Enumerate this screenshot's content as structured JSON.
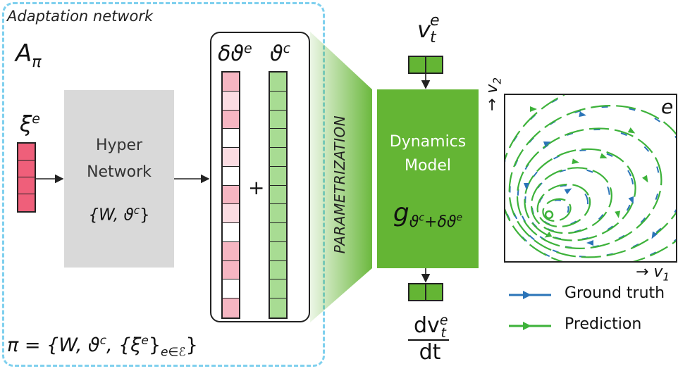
{
  "adaptation": {
    "title": "Adaptation network",
    "a_symbol": "A",
    "a_sub": "π"
  },
  "xi": {
    "base": "ξ",
    "sup": "e",
    "cells": 4,
    "color": "#ef5f7a"
  },
  "hyper": {
    "line1": "Hyper",
    "line2": "Network",
    "params": "{W, ϑ",
    "params_sup": "c",
    "params_end": "}"
  },
  "param_panel": {
    "dtheta": "δϑ",
    "dtheta_sup": "e",
    "theta": "ϑ",
    "theta_sup": "c",
    "plus": "+",
    "dtheta_cells": [
      "#f6b6c2",
      "#fbdce2",
      "#f6b6c2",
      "#ffffff",
      "#fbdce2",
      "#ffffff",
      "#f6b6c2",
      "#fbdce2",
      "#ffffff",
      "#f6b6c2",
      "#f6b6c2",
      "#ffffff",
      "#f6b6c2"
    ],
    "theta_color": "#a8dc93"
  },
  "parametrization": "PARAMETRIZATION",
  "dynamics": {
    "line1": "Dynamics",
    "line2": "Model",
    "g": "g",
    "g_sub": "ϑ",
    "g_sub_sup1": "c",
    "g_sub_plus": "+δϑ",
    "g_sub_sup2": "e",
    "color": "#64b534"
  },
  "input_v": {
    "base": "v",
    "sup": "e",
    "sub": "t"
  },
  "output": {
    "num": "dv",
    "num_sup": "e",
    "num_sub": "t",
    "den": "dt"
  },
  "pi_eq": {
    "text": "π = {W, ϑ",
    "sup_c": "c",
    "mid": ", {ξ",
    "sup_e": "e",
    "end": "}",
    "sub": "e∈ℰ",
    "close": "}"
  },
  "phase": {
    "env": "e",
    "x_axis": "→ v",
    "x_sub": "1",
    "y_axis": "→ v",
    "y_sub": "2",
    "gt_color": "#2b74b8",
    "pred_color": "#3db23a"
  },
  "legend": {
    "gt": "Ground truth",
    "pred": "Prediction"
  }
}
